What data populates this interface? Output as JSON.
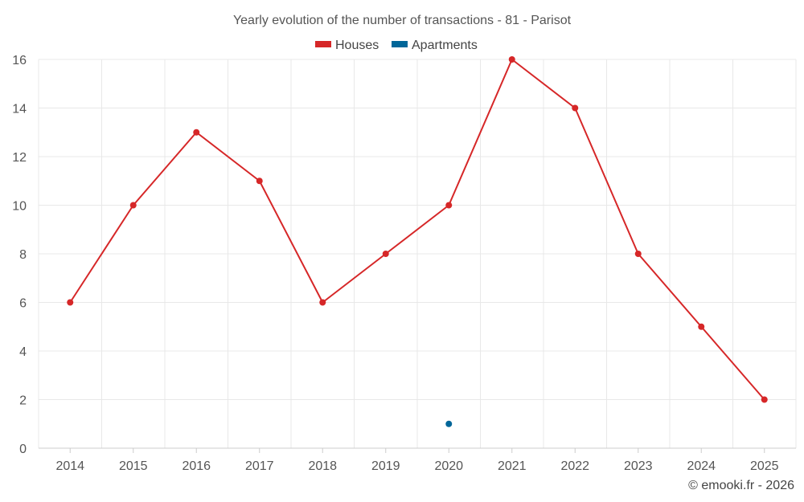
{
  "chart_data": {
    "type": "line",
    "title": "Yearly evolution of the number of transactions - 81 - Parisot",
    "xlabel": "",
    "ylabel": "",
    "categories": [
      "2014",
      "2015",
      "2016",
      "2017",
      "2018",
      "2019",
      "2020",
      "2021",
      "2022",
      "2023",
      "2024",
      "2025"
    ],
    "ylim": [
      0,
      16
    ],
    "yticks": [
      0,
      2,
      4,
      6,
      8,
      10,
      12,
      14,
      16
    ],
    "grid": true,
    "legend_position": "top-center",
    "series": [
      {
        "name": "Houses",
        "color": "#d62728",
        "values": [
          6,
          10,
          13,
          11,
          6,
          8,
          10,
          16,
          14,
          8,
          5,
          2
        ]
      },
      {
        "name": "Apartments",
        "color": "#006699",
        "values": [
          null,
          null,
          null,
          null,
          null,
          null,
          1,
          null,
          null,
          null,
          null,
          null
        ]
      }
    ]
  },
  "credit": "© emooki.fr - 2026"
}
